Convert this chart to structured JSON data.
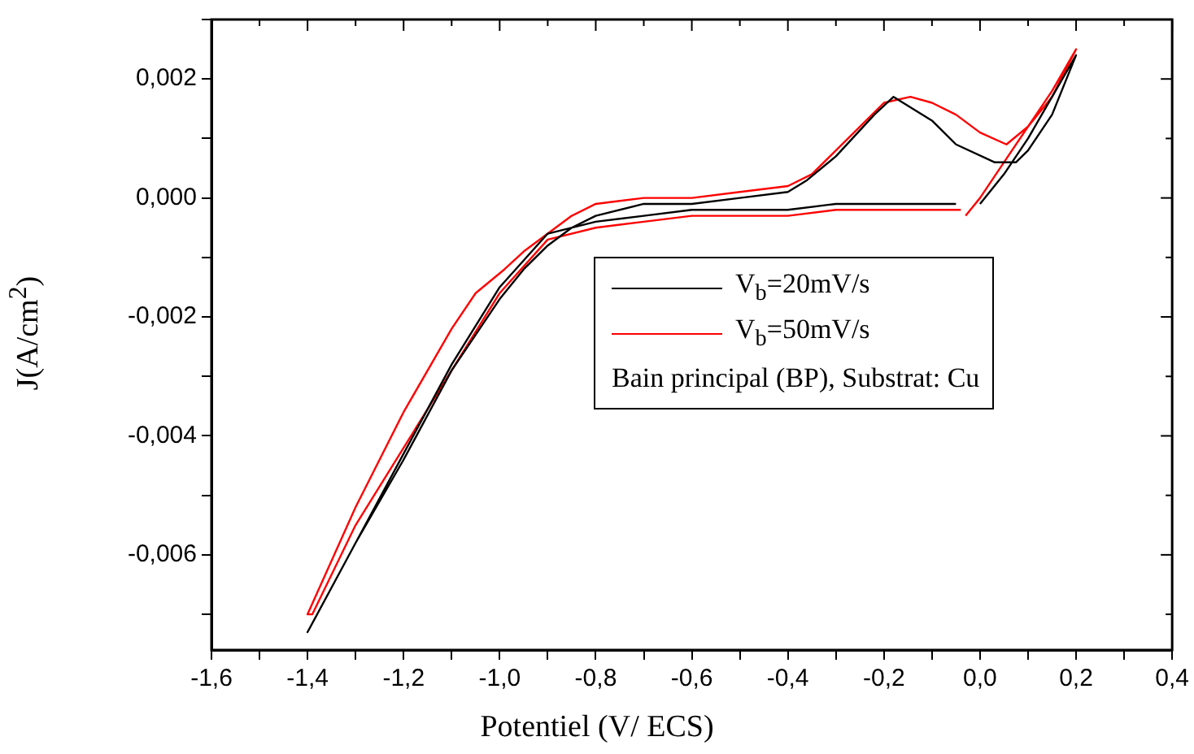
{
  "chart_data": {
    "type": "line",
    "xlabel": "Potentiel (V/ ECS)",
    "ylabel": "J(A/cm$^{2}$)",
    "xlim": [
      -1.6,
      0.4
    ],
    "ylim": [
      -0.0076,
      0.003
    ],
    "xticks": [
      {
        "value": -1.6,
        "label": "-1,6"
      },
      {
        "value": -1.5,
        "label": null
      },
      {
        "value": -1.4,
        "label": "-1,4"
      },
      {
        "value": -1.3,
        "label": null
      },
      {
        "value": -1.2,
        "label": "-1,2"
      },
      {
        "value": -1.1,
        "label": null
      },
      {
        "value": -1.0,
        "label": "-1,0"
      },
      {
        "value": -0.9,
        "label": null
      },
      {
        "value": -0.8,
        "label": "-0,8"
      },
      {
        "value": -0.7,
        "label": null
      },
      {
        "value": -0.6,
        "label": "-0,6"
      },
      {
        "value": -0.5,
        "label": null
      },
      {
        "value": -0.4,
        "label": "-0,4"
      },
      {
        "value": -0.3,
        "label": null
      },
      {
        "value": -0.2,
        "label": "-0,2"
      },
      {
        "value": -0.1,
        "label": null
      },
      {
        "value": 0,
        "label": "0,0"
      },
      {
        "value": 0.1,
        "label": null
      },
      {
        "value": 0.2,
        "label": "0,2"
      },
      {
        "value": 0.3,
        "label": null
      },
      {
        "value": 0.4,
        "label": "0,4"
      }
    ],
    "yticks": [
      {
        "value": -0.007,
        "label": null
      },
      {
        "value": -0.006,
        "label": "-0,006"
      },
      {
        "value": -0.005,
        "label": null
      },
      {
        "value": -0.004,
        "label": "-0,004"
      },
      {
        "value": -0.003,
        "label": null
      },
      {
        "value": -0.002,
        "label": "-0,002"
      },
      {
        "value": -0.001,
        "label": null
      },
      {
        "value": 0,
        "label": "0,000"
      },
      {
        "value": 0.001,
        "label": null
      },
      {
        "value": 0.002,
        "label": "0,002"
      },
      {
        "value": 0.003,
        "label": null
      }
    ],
    "grid": false,
    "legend": "center right",
    "marker": "none",
    "line_style": "solid",
    "annotations": [
      "Bain principal (BP), Substrat: Cu"
    ],
    "series": [
      {
        "name": "V$_{b}$=20mV/s",
        "color": "#000000",
        "x": [
          0.0,
          0.05,
          0.1,
          0.15,
          0.2,
          0.15,
          0.1,
          0.075,
          0.03,
          -0.05,
          -0.1,
          -0.18,
          -0.22,
          -0.3,
          -0.36,
          -0.4,
          -0.5,
          -0.6,
          -0.7,
          -0.8,
          -0.85,
          -0.9,
          -0.95,
          -1.0,
          -1.1,
          -1.2,
          -1.3,
          -1.4,
          -1.3,
          -1.2,
          -1.1,
          -1.0,
          -0.9,
          -0.8,
          -0.7,
          -0.6,
          -0.5,
          -0.4,
          -0.3,
          -0.2,
          -0.05
        ],
        "values": [
          -0.0001,
          0.0004,
          0.001,
          0.0017,
          0.0024,
          0.0014,
          0.0008,
          0.0006,
          0.0006,
          0.0009,
          0.0013,
          0.0017,
          0.0014,
          0.0007,
          0.0003,
          0.0001,
          0.0,
          -0.0001,
          -0.0001,
          -0.0003,
          -0.0005,
          -0.0008,
          -0.0012,
          -0.0017,
          -0.0029,
          -0.0044,
          -0.0058,
          -0.0073,
          -0.0058,
          -0.0043,
          -0.0028,
          -0.0015,
          -0.0006,
          -0.0004,
          -0.0003,
          -0.0002,
          -0.0002,
          -0.0002,
          -0.0001,
          -0.0001,
          -0.0001
        ]
      },
      {
        "name": "V$_{b}$=50mV/s",
        "color": "#ff0000",
        "x": [
          -0.03,
          0.0,
          0.05,
          0.1,
          0.15,
          0.2,
          0.15,
          0.1,
          0.055,
          0.0,
          -0.05,
          -0.1,
          -0.145,
          -0.2,
          -0.25,
          -0.3,
          -0.35,
          -0.4,
          -0.5,
          -0.6,
          -0.7,
          -0.8,
          -0.85,
          -0.9,
          -0.95,
          -0.99,
          -1.05,
          -1.1,
          -1.2,
          -1.3,
          -1.4,
          -1.39,
          -1.3,
          -1.2,
          -1.1,
          -1.0,
          -0.9,
          -0.8,
          -0.7,
          -0.6,
          -0.5,
          -0.4,
          -0.3,
          -0.2,
          -0.04
        ],
        "values": [
          -0.0003,
          0.0,
          0.0006,
          0.0012,
          0.0018,
          0.0025,
          0.0017,
          0.0012,
          0.0009,
          0.0011,
          0.0014,
          0.0016,
          0.0017,
          0.0016,
          0.0012,
          0.0008,
          0.0004,
          0.0002,
          0.0001,
          0.0,
          0.0,
          -0.0001,
          -0.0003,
          -0.0006,
          -0.0009,
          -0.0012,
          -0.0016,
          -0.0022,
          -0.0036,
          -0.0052,
          -0.007,
          -0.007,
          -0.0055,
          -0.0042,
          -0.0029,
          -0.0016,
          -0.0007,
          -0.0005,
          -0.0004,
          -0.0003,
          -0.0003,
          -0.0003,
          -0.0002,
          -0.0002,
          -0.0002
        ]
      }
    ]
  }
}
